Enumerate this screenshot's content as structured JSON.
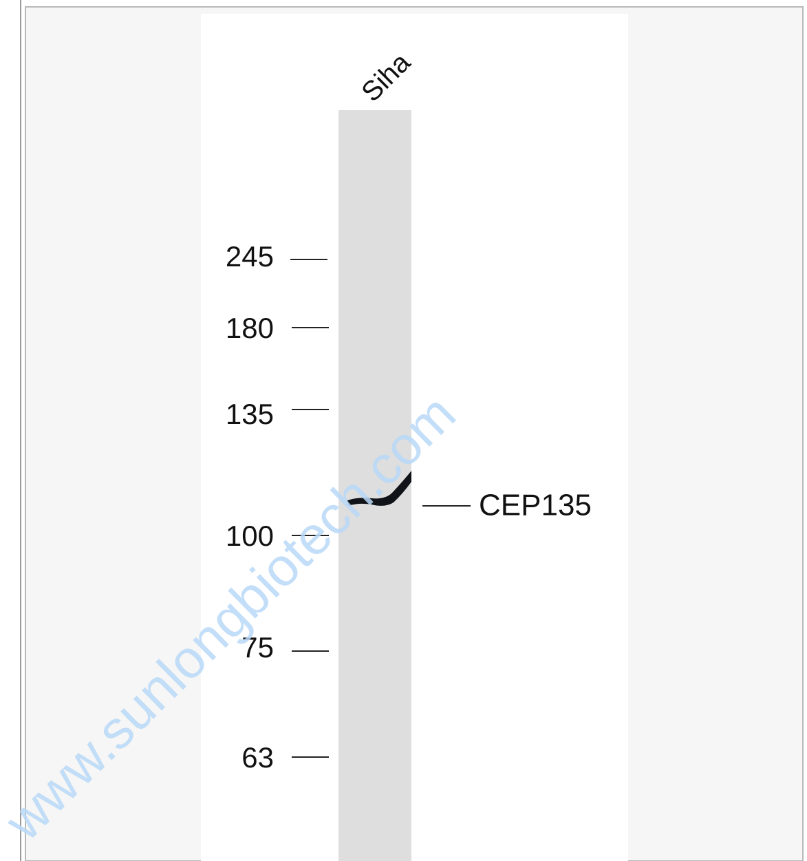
{
  "blot": {
    "lane_label": "Siha",
    "markers": [
      "245",
      "180",
      "135",
      "100",
      "75",
      "63"
    ],
    "band_label": "CEP135"
  },
  "watermark": "www.sunlongbiotech.com"
}
